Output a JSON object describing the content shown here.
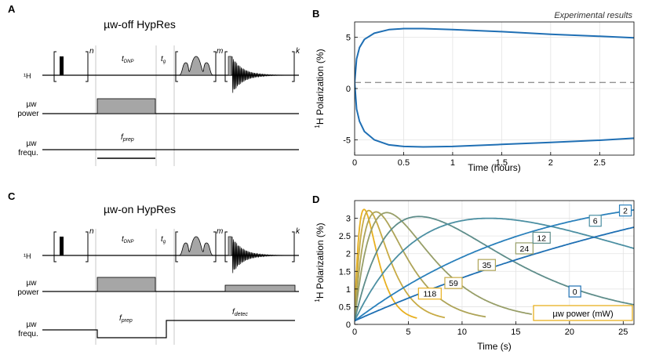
{
  "panels": {
    "A": {
      "letter": "A",
      "title": "µw-off HypRes",
      "labels": {
        "nucleus": "¹H",
        "t_dnp": "t",
        "t_dnp_sub": "DNP",
        "t_g": "t",
        "t_g_sub": "g",
        "loop_n": "n",
        "loop_m": "m",
        "loop_k": "k",
        "mw_power": [
          "µw",
          "power"
        ],
        "mw_freq": [
          "µw",
          "frequ."
        ],
        "f_prep": "f",
        "f_prep_sub": "prep"
      }
    },
    "B": {
      "letter": "B",
      "annotation": "Experimental results",
      "ylabel_sup": "1",
      "ylabel": "H Polarization (%)",
      "xlabel": "Time (hours)",
      "xticks": [
        "0",
        "0.5",
        "1",
        "1.5",
        "2",
        "2.5"
      ],
      "yticks": [
        "-5",
        "0",
        "5"
      ]
    },
    "C": {
      "letter": "C",
      "title": "µw-on HypRes",
      "labels": {
        "nucleus": "¹H",
        "t_dnp": "t",
        "t_dnp_sub": "DNP",
        "t_g": "t",
        "t_g_sub": "g",
        "loop_n": "n",
        "loop_m": "m",
        "loop_k": "k",
        "mw_power": [
          "µw",
          "power"
        ],
        "mw_freq": [
          "µw",
          "frequ."
        ],
        "f_prep": "f",
        "f_prep_sub": "prep",
        "f_detec": "f",
        "f_detec_sub": "detec"
      }
    },
    "D": {
      "letter": "D",
      "ylabel_sup": "1",
      "ylabel": "H Polarization (%)",
      "xlabel": "Time (s)",
      "xticks": [
        "0",
        "5",
        "10",
        "15",
        "20",
        "25"
      ],
      "yticks": [
        "0",
        "0.5",
        "1",
        "1.5",
        "2",
        "2.5",
        "3"
      ],
      "legend": "µw power (mW)"
    }
  },
  "colors": {
    "trace_blue": "#1f6fb4",
    "box_gray": "#a6a6a6",
    "grid": "#e3e3e3",
    "fid": "#000000"
  },
  "chart_data": [
    {
      "type": "line",
      "panel": "B",
      "xlabel": "Time (hours)",
      "ylabel": "1H Polarization (%)",
      "xlim": [
        0,
        2.85
      ],
      "ylim": [
        -6.5,
        6.5
      ],
      "grid": true,
      "reference_line": {
        "y": 0.6,
        "style": "dashed"
      },
      "series": [
        {
          "x": [
            0,
            0.02,
            0.05,
            0.1,
            0.2,
            0.35,
            0.5,
            0.7,
            1.0,
            1.5,
            2.0,
            2.5,
            2.85
          ],
          "y": [
            0.6,
            2.9,
            4.0,
            4.8,
            5.4,
            5.75,
            5.85,
            5.85,
            5.75,
            5.55,
            5.3,
            5.1,
            4.95
          ]
        },
        {
          "x": [
            0,
            0.02,
            0.05,
            0.1,
            0.2,
            0.35,
            0.5,
            0.7,
            1.0,
            1.5,
            2.0,
            2.5,
            2.85
          ],
          "y": [
            0.6,
            -2.0,
            -3.2,
            -4.2,
            -5.0,
            -5.5,
            -5.65,
            -5.7,
            -5.65,
            -5.45,
            -5.25,
            -5.05,
            -4.85
          ]
        }
      ]
    },
    {
      "type": "line",
      "panel": "D",
      "xlabel": "Time (s)",
      "ylabel": "1H Polarization (%)",
      "xlim": [
        0,
        26
      ],
      "ylim": [
        0,
        3.5
      ],
      "grid": true,
      "legend": "µw power (mW)",
      "legend_position": "bottom-right",
      "series": [
        {
          "name": "118",
          "color": "#e8b020",
          "tau": 0.88,
          "peak": 3.25,
          "x_end": 5.8,
          "label_at": [
            7.0,
            0.87
          ]
        },
        {
          "name": "59",
          "color": "#c8ab45",
          "tau": 1.32,
          "peak": 3.22,
          "x_end": 8.4,
          "label_at": [
            9.2,
            1.17
          ]
        },
        {
          "name": "35",
          "color": "#aea458",
          "tau": 2.0,
          "peak": 3.18,
          "x_end": 12.2,
          "label_at": [
            12.3,
            1.68
          ]
        },
        {
          "name": "24",
          "color": "#979e68",
          "tau": 3.0,
          "peak": 3.16,
          "x_end": 16.5,
          "label_at": [
            15.8,
            2.15
          ]
        },
        {
          "name": "12",
          "color": "#5e8d8a",
          "tau": 6.0,
          "peak": 3.05,
          "x_end": 26,
          "label_at": [
            17.4,
            2.45
          ]
        },
        {
          "name": "6",
          "color": "#4b8fa2",
          "tau": 12.5,
          "peak": 3.0,
          "x_end": 26,
          "label_at": [
            22.4,
            2.93
          ]
        },
        {
          "name": "2",
          "color": "#2a80bb",
          "tau": 40.0,
          "peak": 3.5,
          "x_end": 26,
          "label_at": [
            25.2,
            3.22
          ]
        },
        {
          "name": "0",
          "color": "#1e6fb3",
          "tau": 90.0,
          "peak": 4.6,
          "x_end": 26,
          "label_at": [
            20.5,
            0.93
          ]
        }
      ]
    }
  ]
}
